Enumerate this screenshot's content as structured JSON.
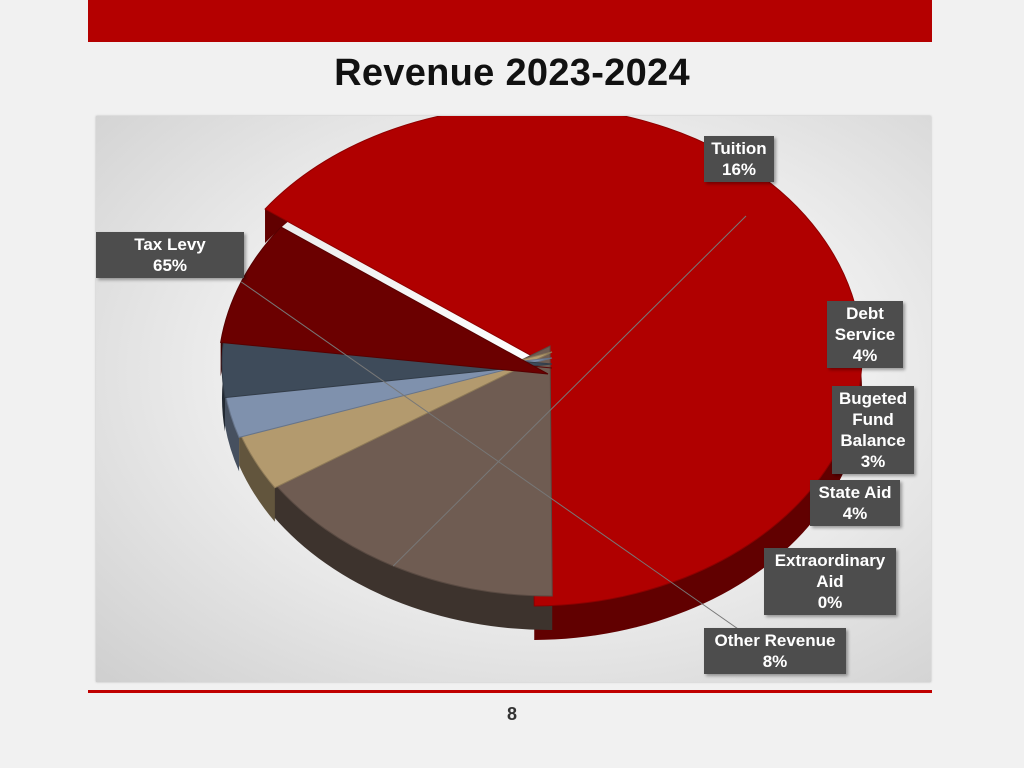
{
  "slide": {
    "title": "Revenue 2023-2024",
    "page_number": "8"
  },
  "colors": {
    "accent": "#b40000"
  },
  "chart_data": {
    "type": "pie",
    "title": "",
    "categories": [
      "Tax Levy",
      "Tuition",
      "Debt Service",
      "Bugeted Fund Balance",
      "State Aid",
      "Extraordinary Aid",
      "Other Revenue"
    ],
    "values": [
      65,
      16,
      4,
      3,
      4,
      0,
      8
    ],
    "value_labels": [
      "65%",
      "16%",
      "4%",
      "3%",
      "4%",
      "0%",
      "8%"
    ],
    "colors": [
      "#b00000",
      "#6f5c52",
      "#b39a6e",
      "#7f91ad",
      "#3e4b5a",
      "#6e0c0c",
      "#6b0000"
    ],
    "exploded": true,
    "style": "3d"
  },
  "labels": [
    {
      "lines": [
        "Tax Levy",
        "65%"
      ]
    },
    {
      "lines": [
        "Tuition",
        "16%"
      ]
    },
    {
      "lines": [
        "Debt",
        "Service",
        "4%"
      ]
    },
    {
      "lines": [
        "Bugeted",
        "Fund",
        "Balance",
        "3%"
      ]
    },
    {
      "lines": [
        "State Aid",
        "4%"
      ]
    },
    {
      "lines": [
        "Extraordinary",
        "Aid",
        "0%"
      ]
    },
    {
      "lines": [
        "Other Revenue",
        "8%"
      ]
    }
  ]
}
